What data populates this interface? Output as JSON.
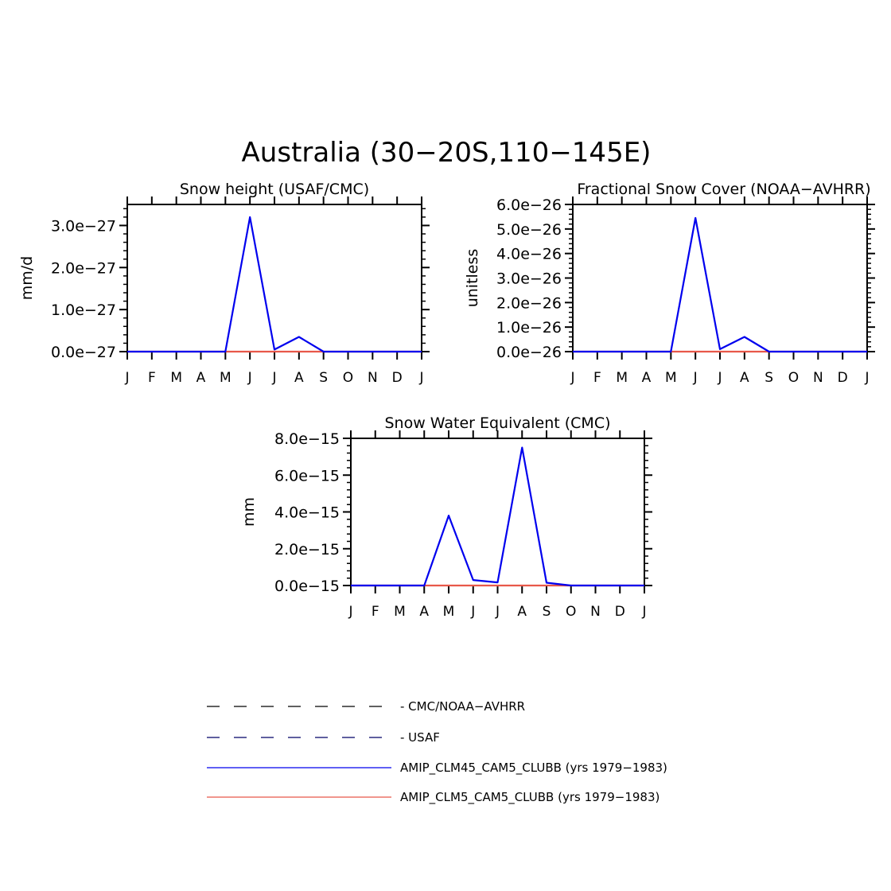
{
  "figure": {
    "title": "Australia (30−20S,110−145E)"
  },
  "chart_data": [
    {
      "type": "line",
      "title": "Snow height (USAF/CMC)",
      "xlabel": "",
      "ylabel": "mm/d",
      "x": [
        "J",
        "F",
        "M",
        "A",
        "M",
        "J",
        "J",
        "A",
        "S",
        "O",
        "N",
        "D",
        "J"
      ],
      "ylim": [
        0,
        3.5e-27
      ],
      "yticks": [
        0,
        1e-27,
        2e-27,
        3e-27
      ],
      "ytick_labels": [
        "0.0e−27",
        "1.0e−27",
        "2.0e−27",
        "3.0e−27"
      ],
      "series": [
        {
          "name": "AMIP_CLM45_CAM5_CLUBB (yrs 1979−1983)",
          "color": "#0000ee",
          "values": [
            0,
            0,
            0,
            0,
            0,
            3.2e-27,
            5e-29,
            3.5e-28,
            0,
            0,
            0,
            0,
            0
          ]
        },
        {
          "name": "AMIP_CLM5_CAM5_CLUBB (yrs 1979−1983)",
          "color": "#e8584a",
          "values": [
            0,
            0,
            0,
            0,
            0,
            0,
            0,
            0,
            0,
            0,
            0,
            0,
            0
          ]
        }
      ]
    },
    {
      "type": "line",
      "title": "Fractional Snow Cover (NOAA−AVHRR)",
      "xlabel": "",
      "ylabel": "unitless",
      "x": [
        "J",
        "F",
        "M",
        "A",
        "M",
        "J",
        "J",
        "A",
        "S",
        "O",
        "N",
        "D",
        "J"
      ],
      "ylim": [
        0,
        6e-26
      ],
      "yticks": [
        0,
        1e-26,
        2e-26,
        3e-26,
        4e-26,
        5e-26,
        6e-26
      ],
      "ytick_labels": [
        "0.0e−26",
        "1.0e−26",
        "2.0e−26",
        "3.0e−26",
        "4.0e−26",
        "5.0e−26",
        "6.0e−26"
      ],
      "series": [
        {
          "name": "AMIP_CLM45_CAM5_CLUBB (yrs 1979−1983)",
          "color": "#0000ee",
          "values": [
            0,
            0,
            0,
            0,
            0,
            5.45e-26,
            1e-27,
            6e-27,
            0,
            0,
            0,
            0,
            0
          ]
        },
        {
          "name": "AMIP_CLM5_CAM5_CLUBB (yrs 1979−1983)",
          "color": "#e8584a",
          "values": [
            0,
            0,
            0,
            0,
            0,
            0,
            0,
            0,
            0,
            0,
            0,
            0,
            0
          ]
        }
      ]
    },
    {
      "type": "line",
      "title": "Snow Water Equivalent (CMC)",
      "xlabel": "",
      "ylabel": "mm",
      "x": [
        "J",
        "F",
        "M",
        "A",
        "M",
        "J",
        "J",
        "A",
        "S",
        "O",
        "N",
        "D",
        "J"
      ],
      "ylim": [
        0,
        8e-15
      ],
      "yticks": [
        0,
        2e-15,
        4e-15,
        6e-15,
        8e-15
      ],
      "ytick_labels": [
        "0.0e−15",
        "2.0e−15",
        "4.0e−15",
        "6.0e−15",
        "8.0e−15"
      ],
      "series": [
        {
          "name": "AMIP_CLM45_CAM5_CLUBB (yrs 1979−1983)",
          "color": "#0000ee",
          "values": [
            0,
            0,
            0,
            0,
            3.8e-15,
            3e-16,
            1.7e-16,
            7.5e-15,
            1.5e-16,
            0,
            0,
            0,
            0
          ]
        },
        {
          "name": "AMIP_CLM5_CAM5_CLUBB (yrs 1979−1983)",
          "color": "#e8584a",
          "values": [
            0,
            0,
            0,
            0,
            0,
            0,
            0,
            0,
            0,
            0,
            0,
            0,
            0
          ]
        }
      ]
    }
  ],
  "legend": [
    {
      "label": "CMC/NOAA−AVHRR",
      "style": "dashed",
      "color": "#000000"
    },
    {
      "label": "USAF",
      "style": "dashed",
      "color": "#000066"
    },
    {
      "label": "AMIP_CLM45_CAM5_CLUBB (yrs 1979−1983)",
      "style": "solid",
      "color": "#0000ee"
    },
    {
      "label": "AMIP_CLM5_CAM5_CLUBB (yrs 1979−1983)",
      "style": "solid",
      "color": "#e8584a"
    }
  ]
}
